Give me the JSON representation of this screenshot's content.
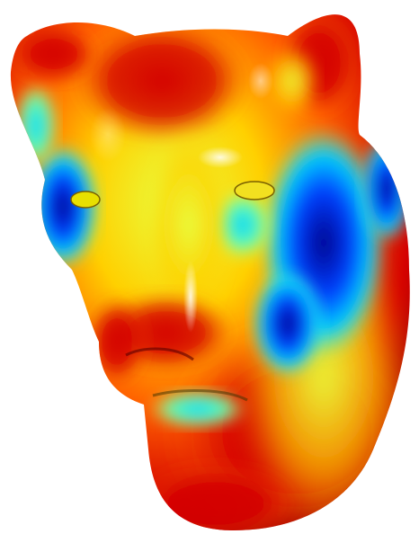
{
  "scene": {
    "subject": "lion-head-mesh-icon",
    "background_color": "#ffffff",
    "colormap": [
      "#00008b",
      "#0040ff",
      "#00d0ff",
      "#60ffb0",
      "#e8ff40",
      "#ffd000",
      "#ff6000",
      "#d40000",
      "#8b0000"
    ]
  }
}
